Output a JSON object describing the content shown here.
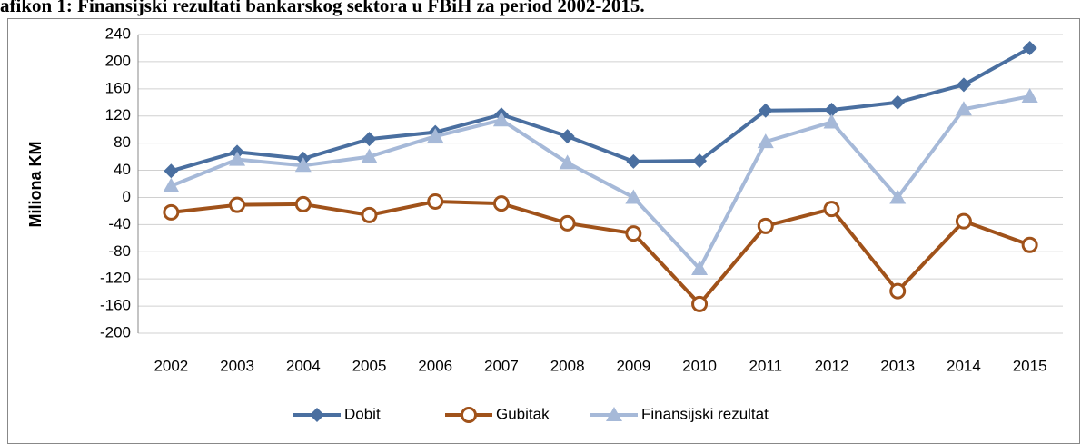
{
  "chart_data": {
    "type": "line",
    "title": "afikon 1: Finansijski rezultati bankarskog sektora u FBiH za period 2002-2015.",
    "y_label": "Miliona KM",
    "categories": [
      "2002",
      "2003",
      "2004",
      "2005",
      "2006",
      "2007",
      "2008",
      "2009",
      "2010",
      "2011",
      "2012",
      "2013",
      "2014",
      "2015"
    ],
    "series": [
      {
        "name": "Dobit",
        "color": "#4a6fa0",
        "marker": "diamond",
        "values": [
          39,
          67,
          57,
          86,
          96,
          122,
          90,
          53,
          54,
          128,
          129,
          140,
          166,
          220
        ]
      },
      {
        "name": "Gubitak",
        "color": "#a0521a",
        "marker": "circle",
        "values": [
          -22,
          -11,
          -10,
          -26,
          -6,
          -9,
          -38,
          -53,
          -157,
          -42,
          -17,
          -138,
          -35,
          -70
        ]
      },
      {
        "name": "Finansijski rezultat",
        "color": "#a6b9d8",
        "marker": "triangle",
        "values": [
          17,
          56,
          47,
          60,
          90,
          114,
          51,
          0,
          -105,
          82,
          111,
          0,
          130,
          149
        ]
      }
    ],
    "ylim": [
      -200,
      240
    ],
    "yticks": [
      -200,
      -160,
      -120,
      -80,
      -40,
      0,
      40,
      80,
      120,
      160,
      200,
      240
    ],
    "grid": true,
    "legend": "bottom"
  }
}
